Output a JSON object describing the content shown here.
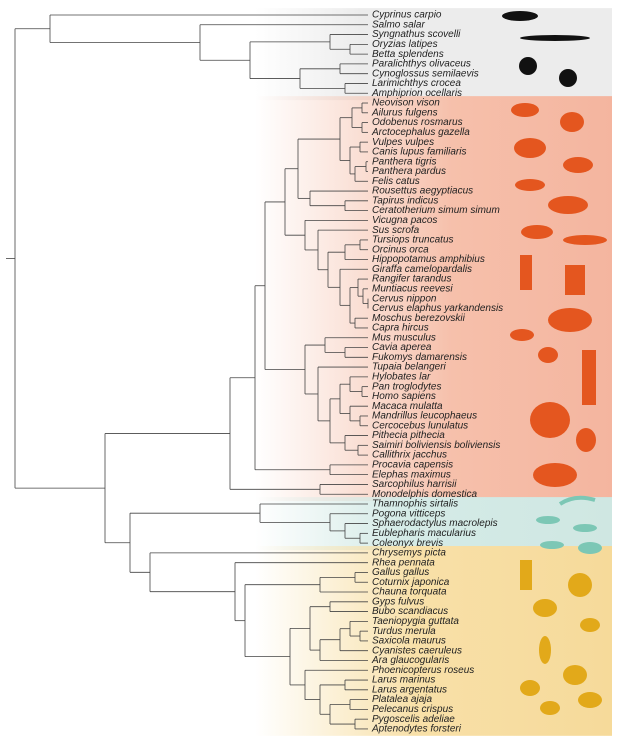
{
  "species": [
    "Cyprinus carpio",
    "Salmo salar",
    "Syngnathus scovelli",
    "Oryzias latipes",
    "Betta splendens",
    "Paralichthys olivaceus",
    "Cynoglossus semilaevis",
    "Larimichthys crocea",
    "Amphiprion ocellaris",
    "Neovison vison",
    "Ailurus fulgens",
    "Odobenus rosmarus",
    "Arctocephalus gazella",
    "Vulpes vulpes",
    "Canis lupus familiaris",
    "Panthera tigris",
    "Panthera pardus",
    "Felis catus",
    "Rousettus aegyptiacus",
    "Tapirus indicus",
    "Ceratotherium simum simum",
    "Vicugna pacos",
    "Sus scrofa",
    "Tursiops truncatus",
    "Orcinus orca",
    "Hippopotamus amphibius",
    "Giraffa camelopardalis",
    "Rangifer tarandus",
    "Muntiacus reevesi",
    "Cervus nippon",
    "Cervus elaphus yarkandensis",
    "Moschus berezovskii",
    "Capra hircus",
    "Mus musculus",
    "Cavia aperea",
    "Fukomys damarensis",
    "Tupaia belangeri",
    "Hylobates lar",
    "Pan troglodytes",
    "Homo sapiens",
    "Macaca mulatta",
    "Mandrillus leucophaeus",
    "Cercocebus lunulatus",
    "Pithecia pithecia",
    "Saimiri boliviensis boliviensis",
    "Callithrix jacchus",
    "Procavia capensis",
    "Elephas maximus",
    "Sarcophilus harrisii",
    "Monodelphis domestica",
    "Thamnophis sirtalis",
    "Pogona vitticeps",
    "Sphaerodactylus macrolepis",
    "Eublepharis macularius",
    "Coleonyx brevis",
    "Chrysemys picta",
    "Rhea pennata",
    "Gallus gallus",
    "Coturnix japonica",
    "Chauna torquata",
    "Gyps fulvus",
    "Bubo scandiacus",
    "Taeniopygia guttata",
    "Turdus merula",
    "Saxicola maurus",
    "Cyanistes caeruleus",
    "Ara glaucogularis",
    "Phoenicopterus roseus",
    "Larus marinus",
    "Larus argentatus",
    "Platalea ajaja",
    "Pelecanus crispus",
    "Pygoscelis adeliae",
    "Aptenodytes forsteri"
  ]
}
